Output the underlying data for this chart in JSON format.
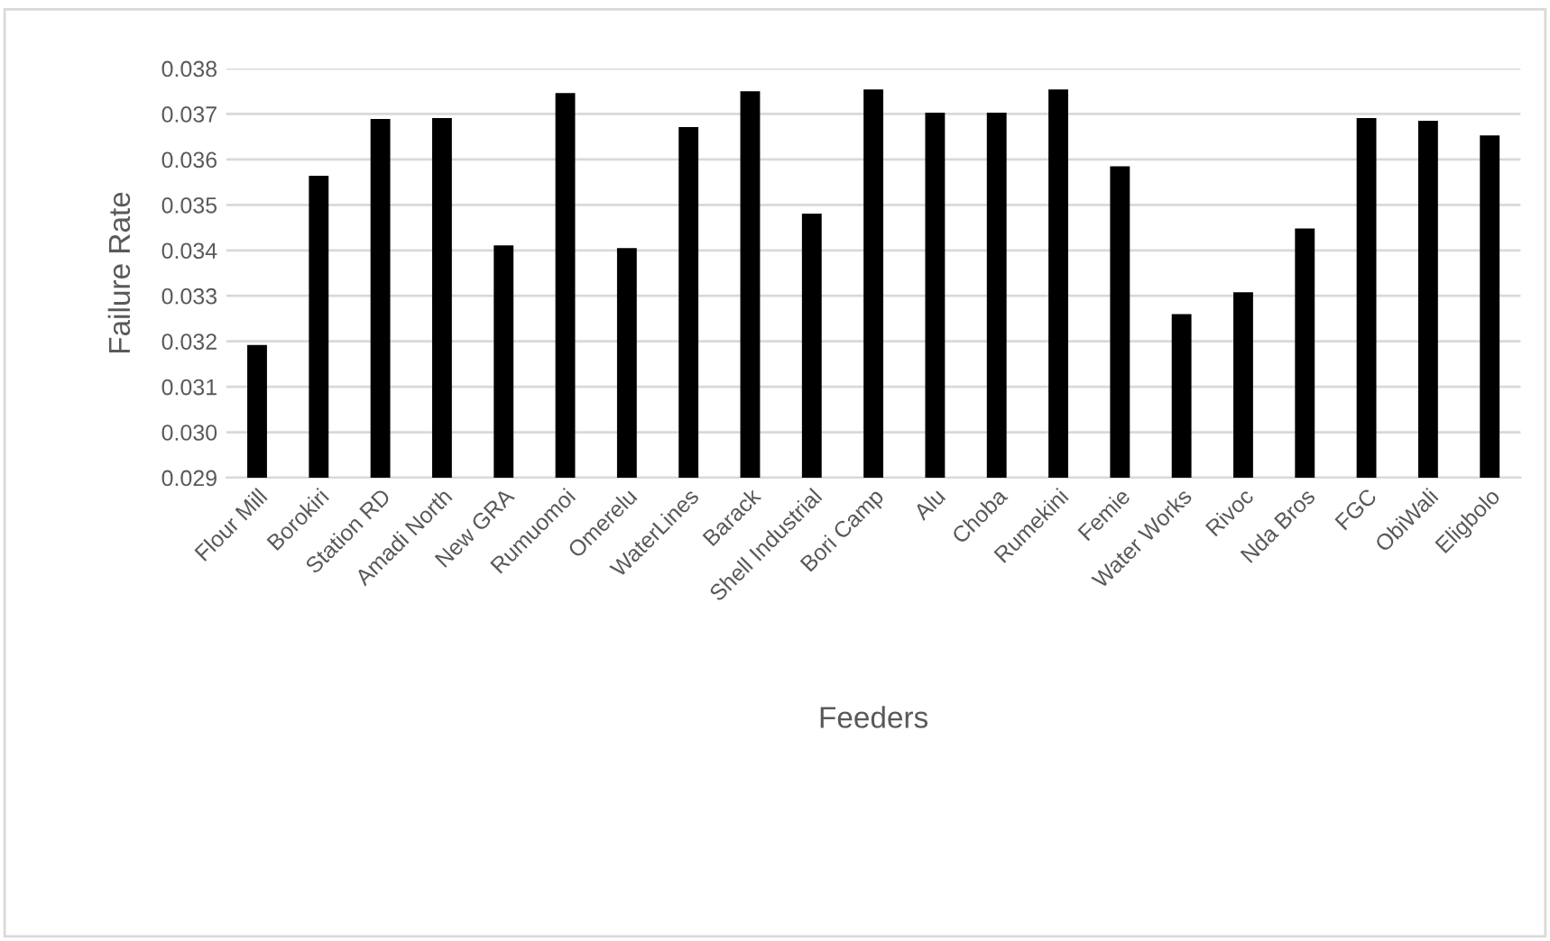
{
  "chart_data": {
    "type": "bar",
    "xlabel": "Feeders",
    "ylabel": "Failure Rate",
    "categories": [
      "Flour Mill",
      "Borokiri",
      "Station RD",
      "Amadi North",
      "New GRA",
      "Rumuomoi",
      "Omerelu",
      "WaterLines",
      "Barack",
      "Shell Industrial",
      "Bori Camp",
      "Alu",
      "Choba",
      "Rumekini",
      "Femie",
      "Water Works",
      "Rivoc",
      "Nda Bros",
      "FGC",
      "ObiWali",
      "Eligbolo"
    ],
    "values": [
      0.03192,
      0.03564,
      0.03689,
      0.03691,
      0.03411,
      0.03746,
      0.03405,
      0.03671,
      0.0375,
      0.03481,
      0.03754,
      0.03703,
      0.03703,
      0.03754,
      0.03585,
      0.0326,
      0.03308,
      0.03448,
      0.03691,
      0.03685,
      0.03653
    ],
    "color": "#000000",
    "ylim": [
      0.029,
      0.038
    ],
    "yticks": [
      {
        "value": 0.029,
        "label": "0.029"
      },
      {
        "value": 0.03,
        "label": "0.030"
      },
      {
        "value": 0.031,
        "label": "0.031"
      },
      {
        "value": 0.032,
        "label": "0.032"
      },
      {
        "value": 0.033,
        "label": "0.033"
      },
      {
        "value": 0.034,
        "label": "0.034"
      },
      {
        "value": 0.035,
        "label": "0.035"
      },
      {
        "value": 0.036,
        "label": "0.036"
      },
      {
        "value": 0.037,
        "label": "0.037"
      },
      {
        "value": 0.038,
        "label": "0.038"
      }
    ],
    "grid": "y",
    "legend": false
  }
}
